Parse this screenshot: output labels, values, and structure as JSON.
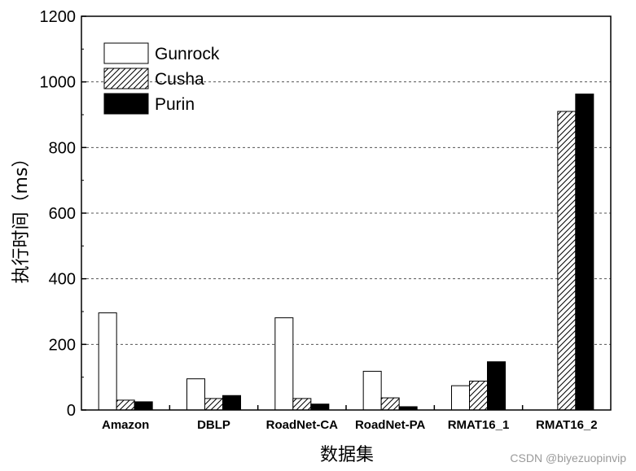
{
  "chart_data": {
    "type": "bar",
    "categories": [
      "Amazon",
      "DBLP",
      "RoadNet-CA",
      "RoadNet-PA",
      "RMAT16_1",
      "RMAT16_2"
    ],
    "series": [
      {
        "name": "Gunrock",
        "values": [
          296,
          95,
          281,
          118,
          74,
          0
        ],
        "fill": "#ffffff",
        "pattern": "none"
      },
      {
        "name": "Cusha",
        "values": [
          30,
          35,
          35,
          37,
          88,
          910
        ],
        "fill": "#ffffff",
        "pattern": "diagonal-hatch"
      },
      {
        "name": "Purin",
        "values": [
          25,
          44,
          18,
          10,
          147,
          963
        ],
        "fill": "#000000",
        "pattern": "none"
      }
    ],
    "xlabel": "数据集",
    "ylabel": "执行时间（ms）",
    "ylim": [
      0,
      1200
    ],
    "yticks": [
      0,
      200,
      400,
      600,
      800,
      1000,
      1200
    ],
    "grid": "dashed-horizontal",
    "legend_position": "top-left"
  },
  "watermark": "CSDN @biyezuopinvip"
}
